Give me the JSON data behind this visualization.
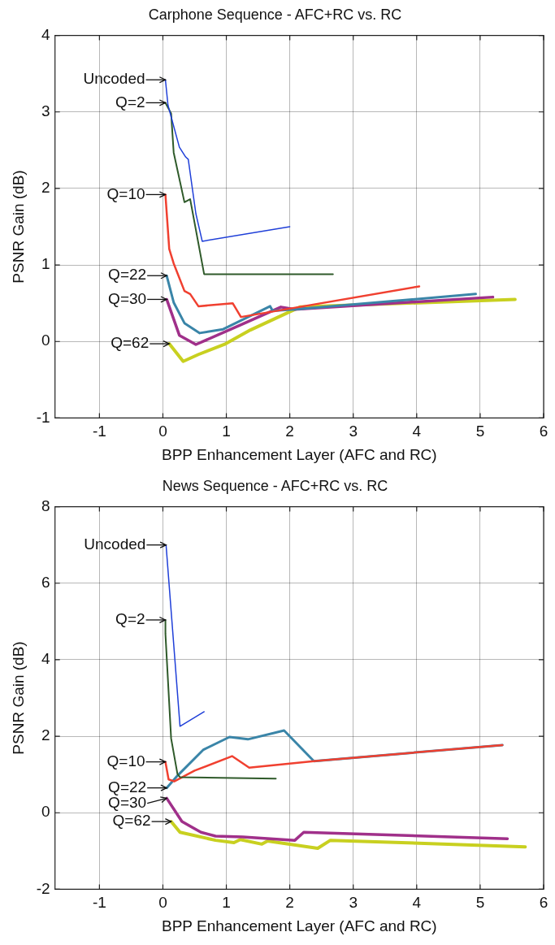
{
  "chart_data": [
    {
      "type": "line",
      "title": "Carphone Sequence - AFC+RC vs. RC",
      "xlabel": "BPP Enhancement Layer (AFC and RC)",
      "ylabel": "PSNR Gain (dB)",
      "xlim": [
        -1.7,
        6
      ],
      "xticks": [
        -1,
        0,
        1,
        2,
        3,
        4,
        5,
        6
      ],
      "ylim": [
        -1,
        4
      ],
      "yticks": [
        -1,
        0,
        1,
        2,
        3,
        4
      ],
      "grid": true,
      "legend": false,
      "marker": "none",
      "line_style": "solid",
      "series": [
        {
          "color": "#1f3fd8",
          "x": [
            0.04,
            0.08,
            0.26,
            0.36,
            0.4,
            0.52,
            0.62,
            2.0
          ],
          "values": [
            3.42,
            3.09,
            2.54,
            2.41,
            2.38,
            1.67,
            1.31,
            1.5
          ]
        },
        {
          "color": "#2f5a2a",
          "x": [
            0.04,
            0.13,
            0.17,
            0.34,
            0.43,
            0.65,
            2.68
          ],
          "values": [
            3.12,
            2.98,
            2.47,
            1.82,
            1.86,
            0.88,
            0.88
          ]
        },
        {
          "color": "#f04030",
          "x": [
            0.04,
            0.1,
            0.17,
            0.34,
            0.43,
            0.56,
            1.1,
            1.23,
            4.04
          ],
          "values": [
            1.92,
            1.21,
            1.02,
            0.66,
            0.62,
            0.46,
            0.5,
            0.32,
            0.72
          ]
        },
        {
          "color": "#3a85a8",
          "x": [
            0.06,
            0.17,
            0.34,
            0.58,
            0.95,
            1.69,
            1.73,
            2.08,
            4.93
          ],
          "values": [
            0.86,
            0.51,
            0.24,
            0.11,
            0.16,
            0.46,
            0.4,
            0.42,
            0.62
          ]
        },
        {
          "color": "#a0308a",
          "x": [
            0.06,
            0.26,
            0.52,
            1.21,
            1.86,
            2.08,
            5.2
          ],
          "values": [
            0.55,
            0.08,
            -0.04,
            0.21,
            0.45,
            0.42,
            0.58
          ]
        },
        {
          "color": "#c8d020",
          "x": [
            0.1,
            0.32,
            0.56,
            0.99,
            1.38,
            2.16,
            5.55
          ],
          "values": [
            -0.03,
            -0.26,
            -0.17,
            -0.03,
            0.15,
            0.45,
            0.55
          ]
        }
      ],
      "annotations": [
        {
          "text": "Uncoded",
          "x": 0.04,
          "y": 3.42
        },
        {
          "text": "Q=2",
          "x": 0.04,
          "y": 3.12
        },
        {
          "text": "Q=10",
          "x": 0.04,
          "y": 1.92
        },
        {
          "text": "Q=22",
          "x": 0.06,
          "y": 0.86
        },
        {
          "text": "Q=30",
          "x": 0.06,
          "y": 0.55
        },
        {
          "text": "Q=62",
          "x": 0.1,
          "y": -0.03
        }
      ]
    },
    {
      "type": "line",
      "title": "News Sequence - AFC+RC vs. RC",
      "xlabel": "BPP Enhancement Layer (AFC and RC)",
      "ylabel": "PSNR Gain (dB)",
      "xlim": [
        -1.7,
        6
      ],
      "xticks": [
        -1,
        0,
        1,
        2,
        3,
        4,
        5,
        6
      ],
      "ylim": [
        -2,
        8
      ],
      "yticks": [
        -2,
        0,
        2,
        4,
        6,
        8
      ],
      "grid": true,
      "legend": false,
      "marker": "none",
      "line_style": "solid",
      "series": [
        {
          "color": "#1f3fd8",
          "x": [
            0.05,
            0.27,
            0.65
          ],
          "values": [
            7.0,
            2.26,
            2.64
          ]
        },
        {
          "color": "#2f5a2a",
          "x": [
            0.04,
            0.04,
            0.13,
            0.23,
            0.27,
            1.78
          ],
          "values": [
            5.04,
            4.68,
            1.94,
            1.01,
            0.93,
            0.89
          ]
        },
        {
          "color": "#f04030",
          "x": [
            0.04,
            0.09,
            0.18,
            0.5,
            1.09,
            1.36,
            2.38,
            5.35
          ],
          "values": [
            1.33,
            0.87,
            0.82,
            1.1,
            1.48,
            1.18,
            1.35,
            1.77
          ]
        },
        {
          "color": "#3a85a8",
          "x": [
            0.06,
            0.23,
            0.64,
            1.05,
            1.34,
            1.91,
            2.38,
            5.35
          ],
          "values": [
            0.65,
            0.97,
            1.65,
            1.98,
            1.92,
            2.15,
            1.35,
            1.77
          ]
        },
        {
          "color": "#a0308a",
          "x": [
            0.06,
            0.3,
            0.6,
            0.83,
            1.26,
            2.08,
            2.22,
            5.43
          ],
          "values": [
            0.38,
            -0.23,
            -0.51,
            -0.61,
            -0.63,
            -0.72,
            -0.51,
            -0.68
          ]
        },
        {
          "color": "#c8d020",
          "x": [
            0.13,
            0.27,
            0.83,
            1.12,
            1.22,
            1.56,
            1.65,
            2.44,
            2.64,
            5.71
          ],
          "values": [
            -0.23,
            -0.51,
            -0.72,
            -0.78,
            -0.7,
            -0.82,
            -0.74,
            -0.93,
            -0.72,
            -0.89
          ]
        }
      ],
      "annotations": [
        {
          "text": "Uncoded",
          "x": 0.05,
          "y": 7.0
        },
        {
          "text": "Q=2",
          "x": 0.04,
          "y": 5.04
        },
        {
          "text": "Q=10",
          "x": 0.04,
          "y": 1.33
        },
        {
          "text": "Q=22",
          "x": 0.06,
          "y": 0.65
        },
        {
          "text": "Q=30",
          "x": 0.06,
          "y": 0.38
        },
        {
          "text": "Q=62",
          "x": 0.13,
          "y": -0.23
        }
      ]
    }
  ]
}
